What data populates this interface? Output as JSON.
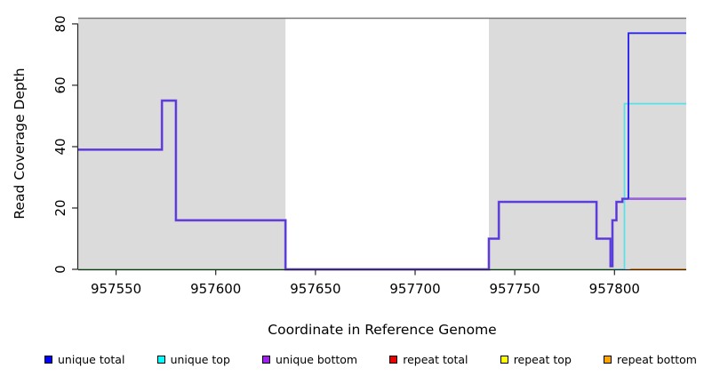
{
  "chart_data": {
    "type": "line",
    "subtype": "step-coverage-plot",
    "title": "",
    "xlabel": "Coordinate in Reference Genome",
    "ylabel": "Read Coverage Depth",
    "xlim": [
      957531,
      957836
    ],
    "ylim": [
      0,
      82
    ],
    "x_ticks": [
      957550,
      957600,
      957650,
      957700,
      957750,
      957800
    ],
    "y_ticks": [
      0,
      20,
      40,
      60,
      80
    ],
    "grid": false,
    "legend_position": "bottom",
    "shaded_region_color": "#DBDBDB",
    "top_boundary_value": 82,
    "top_boundary_color": "#787878",
    "shaded_regions": [
      {
        "x0": 957531,
        "x1": 957635
      },
      {
        "x0": 957737,
        "x1": 957836
      }
    ],
    "series": [
      {
        "name": "unique total",
        "color": "#0000FF",
        "step_points": [
          [
            957531,
            39
          ],
          [
            957573,
            55
          ],
          [
            957580,
            16
          ],
          [
            957635,
            0
          ],
          [
            957737,
            10
          ],
          [
            957742,
            22
          ],
          [
            957791,
            10
          ],
          [
            957798,
            1
          ],
          [
            957799,
            16
          ],
          [
            957801,
            22
          ],
          [
            957804,
            23
          ],
          [
            957807,
            77
          ],
          [
            957836,
            77
          ]
        ]
      },
      {
        "name": "unique top",
        "color": "#00FFFF",
        "step_points": [
          [
            957531,
            0
          ],
          [
            957805,
            54
          ],
          [
            957836,
            54
          ]
        ]
      },
      {
        "name": "unique bottom",
        "color": "#A020F0",
        "step_points": [
          [
            957531,
            39
          ],
          [
            957573,
            55
          ],
          [
            957580,
            16
          ],
          [
            957635,
            0
          ],
          [
            957737,
            10
          ],
          [
            957742,
            22
          ],
          [
            957791,
            10
          ],
          [
            957798,
            1
          ],
          [
            957799,
            16
          ],
          [
            957801,
            22
          ],
          [
            957804,
            23
          ],
          [
            957836,
            23
          ]
        ]
      },
      {
        "name": "repeat total",
        "color": "#EE0000",
        "step_points": [
          [
            957531,
            0
          ],
          [
            957836,
            0
          ]
        ]
      },
      {
        "name": "repeat top",
        "color": "#FFFF00",
        "step_points": [
          [
            957531,
            0
          ],
          [
            957836,
            0
          ]
        ]
      },
      {
        "name": "repeat bottom",
        "color": "#FFA500",
        "step_points": [
          [
            957531,
            0
          ],
          [
            957836,
            0
          ]
        ]
      }
    ],
    "render_layers": [
      {
        "key": "unique-top",
        "color": "#55E2E8",
        "width": 1.7,
        "points": [
          [
            957531,
            0
          ],
          [
            957805,
            54
          ],
          [
            957836,
            54
          ]
        ]
      },
      {
        "key": "repeat-overlap-green",
        "color": "#90DB8A",
        "width": 1.7,
        "points": [
          [
            957531,
            0
          ],
          [
            957800,
            0
          ]
        ]
      },
      {
        "key": "repeat-bottom",
        "color": "#FF9100",
        "width": 2,
        "points": [
          [
            957808,
            0
          ],
          [
            957836,
            0
          ]
        ]
      },
      {
        "key": "unique-bottom",
        "color": "#9C64DB",
        "width": 2.8,
        "points": [
          [
            957531,
            39
          ],
          [
            957573,
            55
          ],
          [
            957580,
            16
          ],
          [
            957635,
            0
          ],
          [
            957737,
            10
          ],
          [
            957742,
            22
          ],
          [
            957791,
            10
          ],
          [
            957798,
            1
          ],
          [
            957799,
            16
          ],
          [
            957801,
            22
          ],
          [
            957804,
            23
          ],
          [
            957836,
            23
          ]
        ]
      },
      {
        "key": "unique-total-main",
        "color": "#4B3BD8",
        "width": 1.7,
        "points": [
          [
            957531,
            39
          ],
          [
            957573,
            55
          ],
          [
            957580,
            16
          ],
          [
            957635,
            0
          ],
          [
            957737,
            10
          ],
          [
            957742,
            22
          ],
          [
            957791,
            10
          ],
          [
            957798,
            1
          ],
          [
            957799,
            16
          ],
          [
            957801,
            22
          ],
          [
            957804,
            23
          ],
          [
            957807,
            23
          ]
        ]
      },
      {
        "key": "unique-total-high",
        "color": "#2B24EC",
        "width": 1.9,
        "points": [
          [
            957807,
            23
          ],
          [
            957807,
            77
          ],
          [
            957836,
            77
          ]
        ]
      }
    ]
  },
  "legend": {
    "items": [
      {
        "label": "unique total",
        "color": "#0000FF"
      },
      {
        "label": "unique top",
        "color": "#00FFFF"
      },
      {
        "label": "unique bottom",
        "color": "#A020F0"
      },
      {
        "label": "repeat total",
        "color": "#EE0000"
      },
      {
        "label": "repeat top",
        "color": "#FFFF00"
      },
      {
        "label": "repeat bottom",
        "color": "#FFA500"
      }
    ]
  }
}
